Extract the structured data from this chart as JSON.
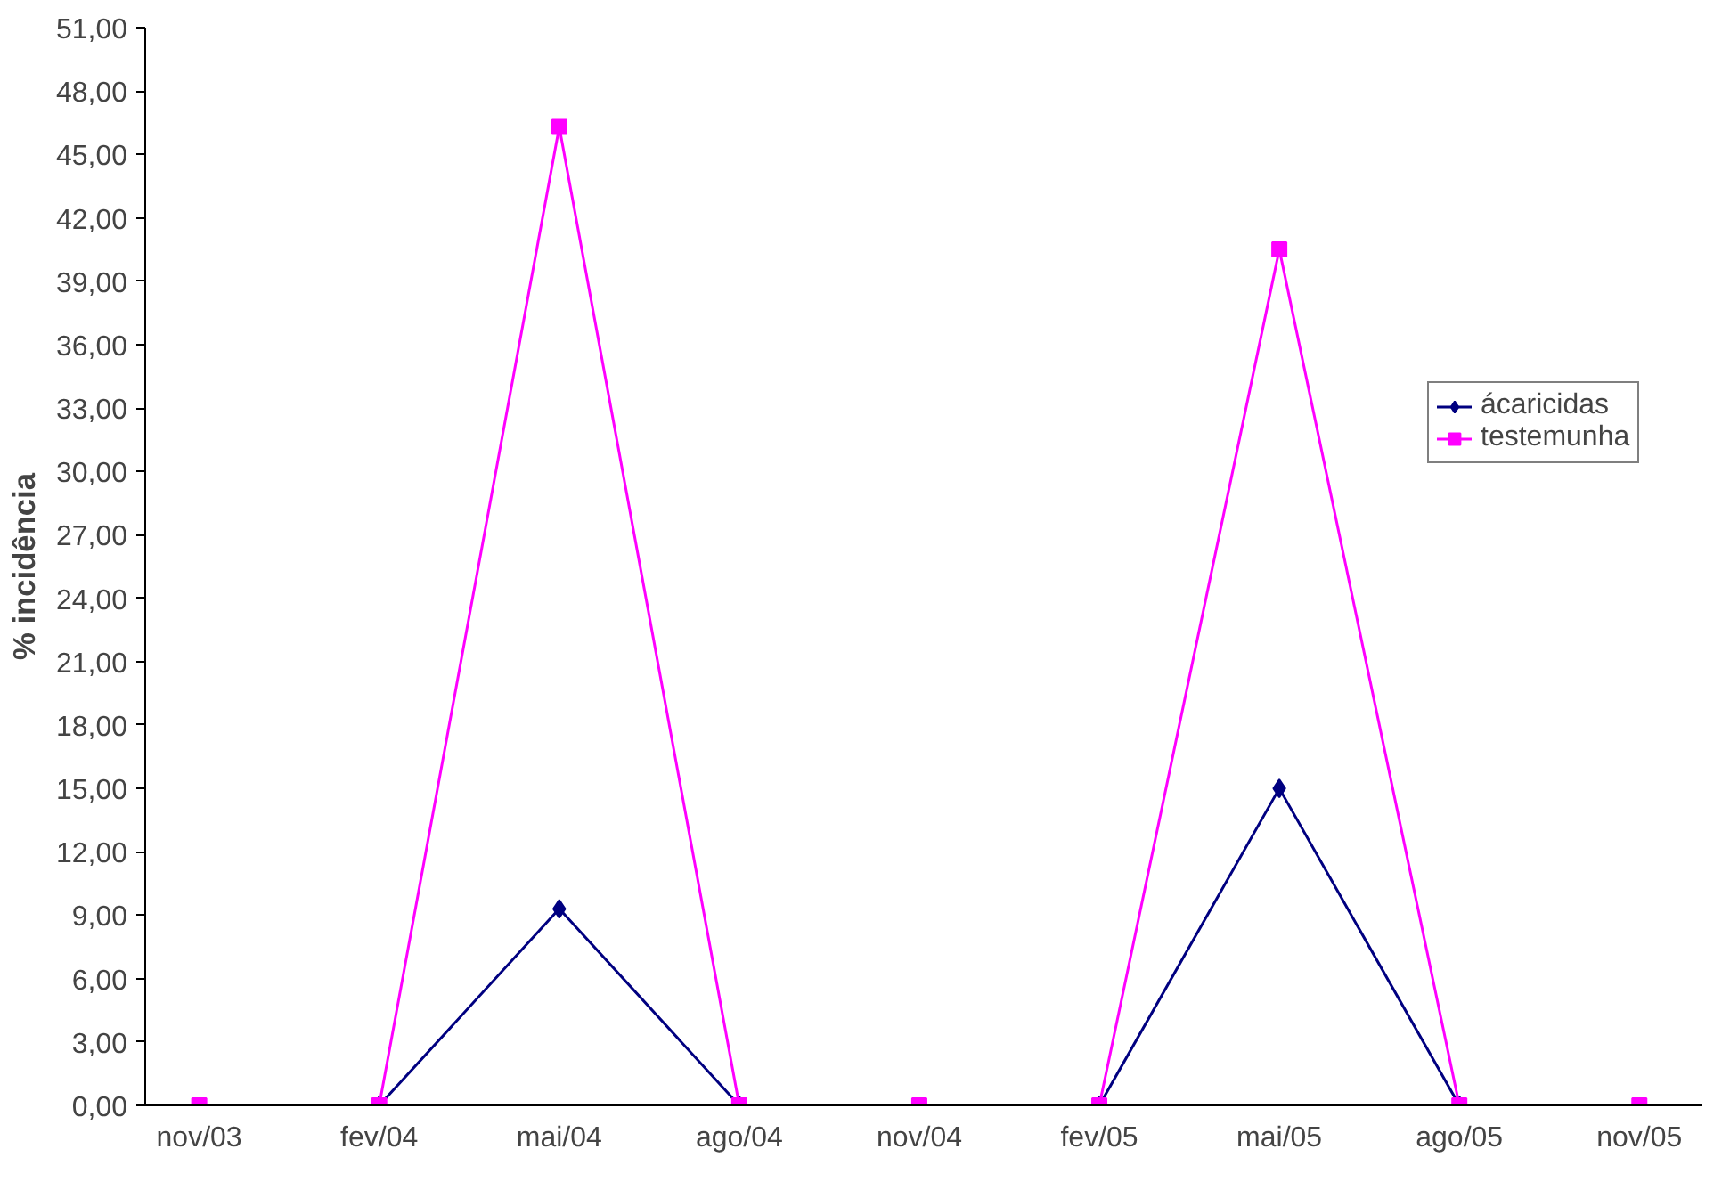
{
  "chart_data": {
    "type": "line",
    "ylabel": "% incidência",
    "categories": [
      "nov/03",
      "fev/04",
      "mai/04",
      "ago/04",
      "nov/04",
      "fev/05",
      "mai/05",
      "ago/05",
      "nov/05"
    ],
    "series": [
      {
        "name": "ácaricidas",
        "color": "#000080",
        "marker": "diamond",
        "values": [
          null,
          0,
          9.3,
          0,
          null,
          0,
          15.0,
          0,
          null
        ]
      },
      {
        "name": "testemunha",
        "color": "#ff00ff",
        "marker": "square",
        "values": [
          0,
          0,
          46.3,
          0,
          0,
          0,
          40.5,
          0,
          0
        ]
      }
    ],
    "ylim": [
      0,
      51
    ],
    "yticks": [
      {
        "value": 0,
        "label": "0,00"
      },
      {
        "value": 3,
        "label": "3,00"
      },
      {
        "value": 6,
        "label": "6,00"
      },
      {
        "value": 9,
        "label": "9,00"
      },
      {
        "value": 12,
        "label": "12,00"
      },
      {
        "value": 15,
        "label": "15,00"
      },
      {
        "value": 18,
        "label": "18,00"
      },
      {
        "value": 21,
        "label": "21,00"
      },
      {
        "value": 24,
        "label": "24,00"
      },
      {
        "value": 27,
        "label": "27,00"
      },
      {
        "value": 30,
        "label": "30,00"
      },
      {
        "value": 33,
        "label": "33,00"
      },
      {
        "value": 36,
        "label": "36,00"
      },
      {
        "value": 39,
        "label": "39,00"
      },
      {
        "value": 42,
        "label": "42,00"
      },
      {
        "value": 45,
        "label": "45,00"
      },
      {
        "value": 48,
        "label": "48,00"
      },
      {
        "value": 51,
        "label": "51,00"
      }
    ],
    "grid": false,
    "legend": "right",
    "line_style": "solid"
  }
}
